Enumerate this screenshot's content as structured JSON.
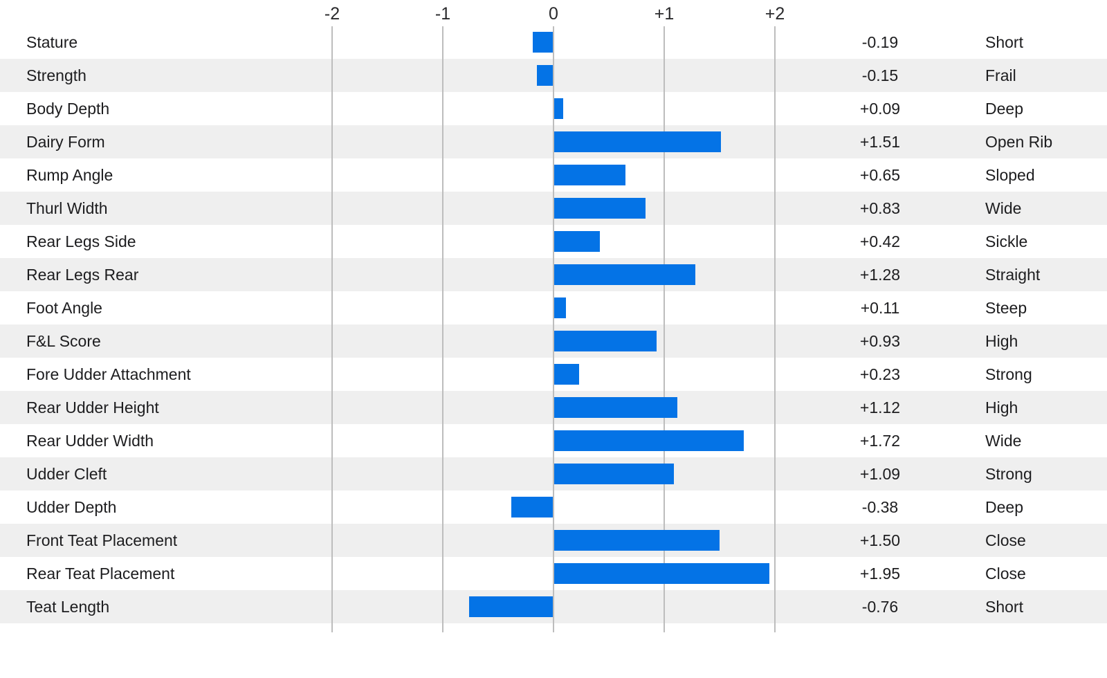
{
  "chart_data": {
    "type": "bar",
    "orientation": "horizontal",
    "title": "",
    "axis": {
      "tick_labels": [
        "-2",
        "-1",
        "0",
        "+1",
        "+2"
      ],
      "tick_values": [
        -2,
        -1,
        0,
        1,
        2
      ],
      "xlim": [
        -5,
        5
      ],
      "grid": true,
      "zero_line": true
    },
    "columns": [
      "trait",
      "value",
      "descriptor"
    ],
    "rows": [
      {
        "trait": "Stature",
        "value": -0.19,
        "value_label": "-0.19",
        "descriptor": "Short"
      },
      {
        "trait": "Strength",
        "value": -0.15,
        "value_label": "-0.15",
        "descriptor": "Frail"
      },
      {
        "trait": "Body Depth",
        "value": 0.09,
        "value_label": "+0.09",
        "descriptor": "Deep"
      },
      {
        "trait": "Dairy Form",
        "value": 1.51,
        "value_label": "+1.51",
        "descriptor": "Open Rib"
      },
      {
        "trait": "Rump Angle",
        "value": 0.65,
        "value_label": "+0.65",
        "descriptor": "Sloped"
      },
      {
        "trait": "Thurl Width",
        "value": 0.83,
        "value_label": "+0.83",
        "descriptor": "Wide"
      },
      {
        "trait": "Rear Legs Side",
        "value": 0.42,
        "value_label": "+0.42",
        "descriptor": "Sickle"
      },
      {
        "trait": "Rear Legs Rear",
        "value": 1.28,
        "value_label": "+1.28",
        "descriptor": "Straight"
      },
      {
        "trait": "Foot Angle",
        "value": 0.11,
        "value_label": "+0.11",
        "descriptor": "Steep"
      },
      {
        "trait": "F&L Score",
        "value": 0.93,
        "value_label": "+0.93",
        "descriptor": "High"
      },
      {
        "trait": "Fore Udder Attachment",
        "value": 0.23,
        "value_label": "+0.23",
        "descriptor": "Strong"
      },
      {
        "trait": "Rear Udder Height",
        "value": 1.12,
        "value_label": "+1.12",
        "descriptor": "High"
      },
      {
        "trait": "Rear Udder Width",
        "value": 1.72,
        "value_label": "+1.72",
        "descriptor": "Wide"
      },
      {
        "trait": "Udder Cleft",
        "value": 1.09,
        "value_label": "+1.09",
        "descriptor": "Strong"
      },
      {
        "trait": "Udder Depth",
        "value": -0.38,
        "value_label": "-0.38",
        "descriptor": "Deep"
      },
      {
        "trait": "Front Teat Placement",
        "value": 1.5,
        "value_label": "+1.50",
        "descriptor": "Close"
      },
      {
        "trait": "Rear Teat Placement",
        "value": 1.95,
        "value_label": "+1.95",
        "descriptor": "Close"
      },
      {
        "trait": "Teat Length",
        "value": -0.76,
        "value_label": "-0.76",
        "descriptor": "Short"
      }
    ],
    "colors": {
      "bar": "#0473e6",
      "row_stripe": "#efefef",
      "row_plain": "#ffffff",
      "gridline": "#bdbdbd",
      "text": "#1d1d1f"
    },
    "legend": null
  }
}
